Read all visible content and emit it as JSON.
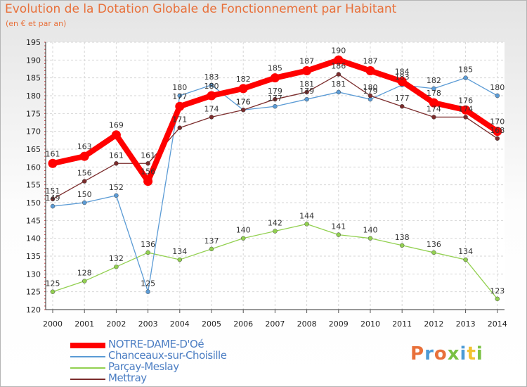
{
  "header": {
    "title": "Evolution de la Dotation Globale de Fonctionnement par Habitant",
    "subtitle": "(en € et par an)"
  },
  "logo": {
    "text": "Proxiti",
    "colors": [
      "#e8703a",
      "#4c9bd6",
      "#7ac143",
      "#f2c230"
    ]
  },
  "chart_data": {
    "type": "line",
    "title": "Evolution de la Dotation Globale de Fonctionnement par Habitant",
    "subtitle": "(en € et par an)",
    "xlabel": "",
    "ylabel": "",
    "x": [
      "2000",
      "2001",
      "2002",
      "2003",
      "2004",
      "2005",
      "2006",
      "2007",
      "2008",
      "2009",
      "2010",
      "2011",
      "2012",
      "2013",
      "2014"
    ],
    "ylim": [
      120,
      195
    ],
    "yticks": [
      120,
      125,
      130,
      135,
      140,
      145,
      150,
      155,
      160,
      165,
      170,
      175,
      180,
      185,
      190,
      195
    ],
    "grid": true,
    "legend_position": "bottom-left",
    "series": [
      {
        "name": "NOTRE-DAME-D'Oé",
        "color": "#ff0000",
        "values": [
          161,
          163,
          169,
          156,
          177,
          180,
          182,
          185,
          187,
          190,
          187,
          184,
          178,
          176,
          170
        ]
      },
      {
        "name": "Chanceaux-sur-Choisille",
        "color": "#5b9bd5",
        "values": [
          149,
          150,
          152,
          125,
          180,
          183,
          176,
          177,
          179,
          181,
          179,
          183,
          182,
          185,
          180
        ]
      },
      {
        "name": "Parçay-Meslay",
        "color": "#92d050",
        "values": [
          125,
          128,
          132,
          136,
          134,
          137,
          140,
          142,
          144,
          141,
          140,
          138,
          136,
          134,
          123
        ]
      },
      {
        "name": "Mettray",
        "color": "#7b2c2c",
        "values": [
          151,
          156,
          161,
          161,
          171,
          174,
          176,
          179,
          181,
          186,
          180,
          177,
          174,
          174,
          168
        ]
      }
    ]
  }
}
